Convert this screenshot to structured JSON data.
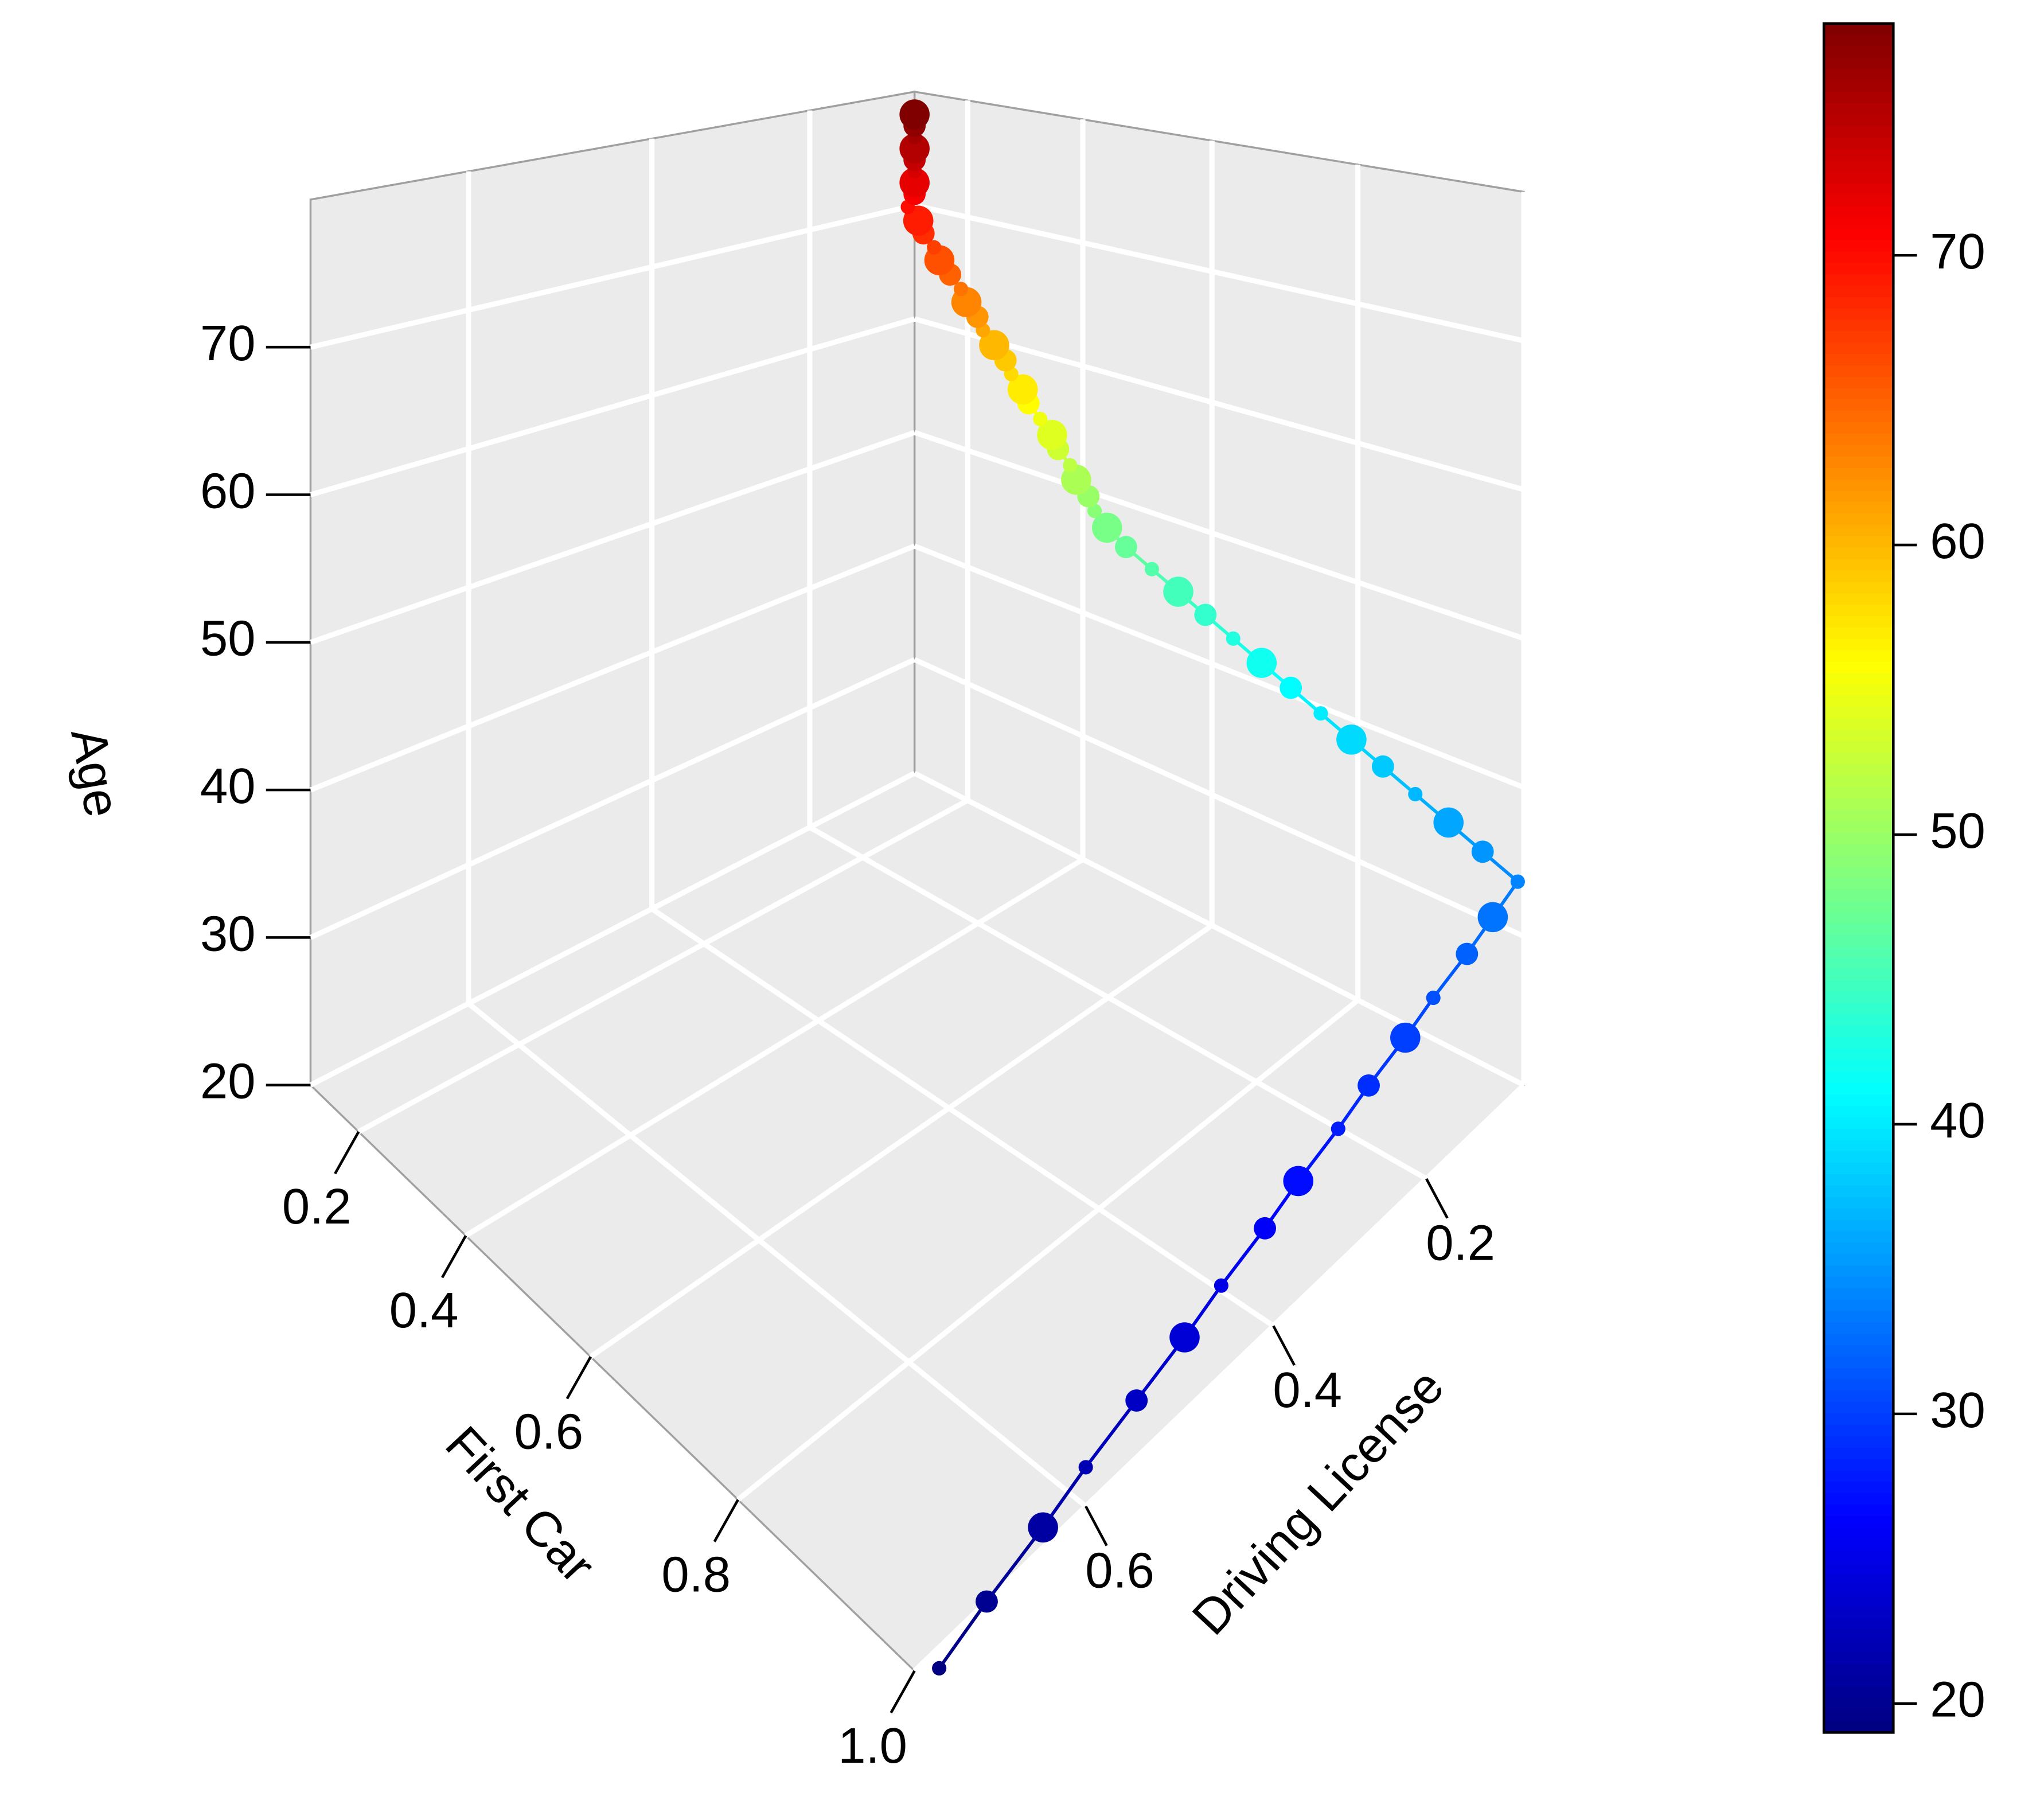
{
  "chart_data": {
    "type": "scatter3d",
    "x_label": "Driving License",
    "y_label": "First Car",
    "z_label": "Age",
    "xlim": [
      0.05,
      0.75
    ],
    "xticks": [
      0.2,
      0.4,
      0.6
    ],
    "ylim": [
      0.1,
      1.0
    ],
    "yticks": [
      0.2,
      0.4,
      0.6,
      0.8,
      {
        "value": 1.0,
        "label": "1.0"
      }
    ],
    "zlim": [
      20,
      80
    ],
    "zticks": [
      20,
      30,
      40,
      50,
      60,
      70
    ],
    "grid": true,
    "colormap": "jet",
    "clim": [
      19,
      78
    ],
    "colorbar_ticks": [
      20,
      30,
      40,
      50,
      60,
      70
    ],
    "series": [
      {
        "x": [
          0.73,
          0.69,
          0.64,
          0.6,
          0.55,
          0.5,
          0.46,
          0.41,
          0.37,
          0.32,
          0.28,
          0.23,
          0.19,
          0.14,
          0.1,
          0.06,
          0.06,
          0.06,
          0.06,
          0.06,
          0.06,
          0.06,
          0.06,
          0.06,
          0.06,
          0.06,
          0.06,
          0.06,
          0.06,
          0.06,
          0.06,
          0.06,
          0.06,
          0.06,
          0.06,
          0.06,
          0.06,
          0.06,
          0.06,
          0.06,
          0.06,
          0.06,
          0.06,
          0.06,
          0.06,
          0.06,
          0.06,
          0.06,
          0.06,
          0.06,
          0.06,
          0.06,
          0.05,
          0.05,
          0.05,
          0.05,
          0.05,
          0.05,
          0.05,
          0.05
        ],
        "y": [
          1.0,
          1.0,
          1.0,
          1.0,
          1.0,
          1.0,
          1.0,
          1.0,
          1.0,
          1.0,
          1.0,
          1.0,
          1.0,
          1.0,
          1.0,
          1.0,
          0.96,
          0.92,
          0.88,
          0.84,
          0.8,
          0.76,
          0.72,
          0.68,
          0.64,
          0.6,
          0.56,
          0.52,
          0.48,
          0.45,
          0.43,
          0.42,
          0.4,
          0.39,
          0.37,
          0.36,
          0.34,
          0.32,
          0.31,
          0.29,
          0.28,
          0.26,
          0.24,
          0.23,
          0.21,
          0.2,
          0.18,
          0.16,
          0.15,
          0.13,
          0.12,
          0.1,
          0.1,
          0.1,
          0.1,
          0.1,
          0.1,
          0.1,
          0.1,
          0.1
        ],
        "z": [
          19,
          20,
          21,
          22,
          23,
          24,
          25,
          26,
          27,
          28,
          29,
          30,
          31,
          32,
          33,
          34,
          35,
          36,
          37,
          38,
          39,
          40,
          41,
          42,
          43,
          44,
          45,
          46,
          47,
          48,
          49,
          50,
          51,
          52,
          53,
          54,
          55,
          56,
          57,
          58,
          59,
          60,
          61,
          62,
          63,
          64,
          65,
          66,
          67,
          68,
          69,
          70,
          71,
          72,
          73,
          74,
          75,
          76,
          77,
          78
        ],
        "sizes": [
          1,
          2,
          3,
          1,
          2,
          3,
          1,
          2,
          3,
          1,
          2,
          3,
          1,
          2,
          3,
          1,
          2,
          3,
          1,
          2,
          3,
          1,
          2,
          3,
          1,
          2,
          3,
          1,
          2,
          3,
          1,
          2,
          3,
          1,
          2,
          3,
          1,
          2,
          3,
          1,
          2,
          3,
          1,
          2,
          3,
          1,
          2,
          3,
          1,
          2,
          3,
          1,
          2,
          3,
          1,
          2,
          3,
          1,
          2,
          3
        ]
      }
    ]
  }
}
